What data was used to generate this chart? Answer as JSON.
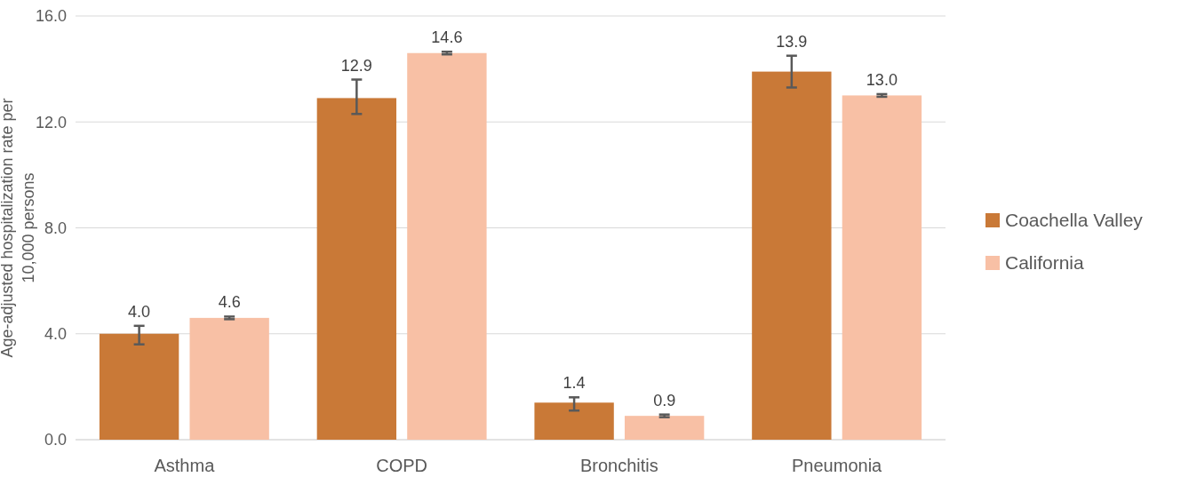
{
  "chart_data": {
    "type": "bar",
    "ylabel": "Age-adjusted hospitalization rate per 10,000 persons",
    "categories": [
      "Asthma",
      "COPD",
      "Bronchitis",
      "Pneumonia"
    ],
    "series": [
      {
        "name": "Coachella Valley",
        "color": "#c97937",
        "values": [
          4.0,
          12.9,
          1.4,
          13.9
        ],
        "value_labels": [
          "4.0",
          "12.9",
          "1.4",
          "13.9"
        ],
        "errors": [
          [
            3.6,
            4.3
          ],
          [
            12.3,
            13.6
          ],
          [
            1.1,
            1.6
          ],
          [
            13.3,
            14.5
          ]
        ]
      },
      {
        "name": "California",
        "color": "#f8c0a5",
        "values": [
          4.6,
          14.6,
          0.9,
          13.0
        ],
        "value_labels": [
          "4.6",
          "14.6",
          "0.9",
          "13.0"
        ],
        "errors": [
          0.05,
          0.05,
          0.05,
          0.05
        ]
      }
    ],
    "ylim": [
      0,
      16
    ],
    "yticks": [
      {
        "value": 0,
        "label": "0.0"
      },
      {
        "value": 4,
        "label": "4.0"
      },
      {
        "value": 8,
        "label": "8.0"
      },
      {
        "value": 12,
        "label": "12.0"
      },
      {
        "value": 16,
        "label": "16.0"
      }
    ],
    "grid": "y",
    "legend": "right"
  }
}
